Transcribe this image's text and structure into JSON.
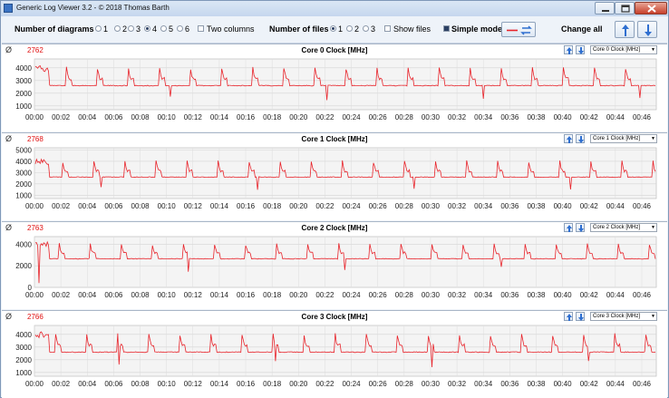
{
  "window": {
    "title": "Generic Log Viewer 3.2 - © 2018 Thomas Barth"
  },
  "toolbar": {
    "diagrams_label": "Number of diagrams",
    "diagram_options": [
      "1",
      "2",
      "3",
      "4",
      "5",
      "6"
    ],
    "diagrams_selected": "4",
    "two_columns_label": "Two columns",
    "files_label": "Number of files",
    "file_options": [
      "1",
      "2",
      "3"
    ],
    "files_selected": "1",
    "show_files_label": "Show files",
    "simple_mode_label": "Simple mode",
    "simple_mode_checked": true,
    "change_all_label": "Change all"
  },
  "colors": {
    "series": "#e8232a",
    "accent_blue": "#2f6fd0"
  },
  "panels": [
    {
      "avg_symbol": "Ø",
      "avg_value": "2762",
      "title": "Core 0 Clock [MHz]",
      "selector": "Core 0 Clock [MHz]"
    },
    {
      "avg_symbol": "Ø",
      "avg_value": "2768",
      "title": "Core 1 Clock [MHz]",
      "selector": "Core 1 Clock [MHz]"
    },
    {
      "avg_symbol": "Ø",
      "avg_value": "2763",
      "title": "Core 2 Clock [MHz]",
      "selector": "Core 2 Clock [MHz]"
    },
    {
      "avg_symbol": "Ø",
      "avg_value": "2766",
      "title": "Core 3 Clock [MHz]",
      "selector": "Core 3 Clock [MHz]"
    }
  ],
  "chart_data": [
    {
      "type": "line",
      "title": "Core 0 Clock [MHz]",
      "x_ticks": [
        "00:00",
        "00:02",
        "00:04",
        "00:06",
        "00:08",
        "00:10",
        "00:12",
        "00:14",
        "00:16",
        "00:18",
        "00:20",
        "00:22",
        "00:24",
        "00:26",
        "00:28",
        "00:30",
        "00:32",
        "00:34",
        "00:36",
        "00:38",
        "00:40",
        "00:42",
        "00:44",
        "00:46"
      ],
      "y_ticks": [
        1000,
        2000,
        3000,
        4000
      ],
      "ylim": [
        700,
        4700
      ],
      "baseline": 2600,
      "peak": 4100,
      "avg": 2762
    },
    {
      "type": "line",
      "title": "Core 1 Clock [MHz]",
      "x_ticks": [
        "00:00",
        "00:02",
        "00:04",
        "00:06",
        "00:08",
        "00:10",
        "00:12",
        "00:14",
        "00:16",
        "00:18",
        "00:20",
        "00:22",
        "00:24",
        "00:26",
        "00:28",
        "00:30",
        "00:32",
        "00:34",
        "00:36",
        "00:38",
        "00:40",
        "00:42",
        "00:44",
        "00:46"
      ],
      "y_ticks": [
        1000,
        2000,
        3000,
        4000,
        5000
      ],
      "ylim": [
        700,
        5200
      ],
      "baseline": 2600,
      "peak": 4100,
      "avg": 2768
    },
    {
      "type": "line",
      "title": "Core 2 Clock [MHz]",
      "x_ticks": [
        "00:00",
        "00:02",
        "00:04",
        "00:06",
        "00:08",
        "00:10",
        "00:12",
        "00:14",
        "00:16",
        "00:18",
        "00:20",
        "00:22",
        "00:24",
        "00:26",
        "00:28",
        "00:30",
        "00:32",
        "00:34",
        "00:36",
        "00:38",
        "00:40",
        "00:42",
        "00:44",
        "00:46"
      ],
      "y_ticks": [
        0,
        2000,
        4000
      ],
      "ylim": [
        0,
        4700
      ],
      "baseline": 2650,
      "peak": 4100,
      "avg": 2763
    },
    {
      "type": "line",
      "title": "Core 3 Clock [MHz]",
      "x_ticks": [
        "00:00",
        "00:02",
        "00:04",
        "00:06",
        "00:08",
        "00:10",
        "00:12",
        "00:14",
        "00:16",
        "00:18",
        "00:20",
        "00:22",
        "00:24",
        "00:26",
        "00:28",
        "00:30",
        "00:32",
        "00:34",
        "00:36",
        "00:38",
        "00:40",
        "00:42",
        "00:44",
        "00:46"
      ],
      "y_ticks": [
        1000,
        2000,
        3000,
        4000
      ],
      "ylim": [
        700,
        4700
      ],
      "baseline": 2600,
      "peak": 4100,
      "avg": 2766
    }
  ]
}
